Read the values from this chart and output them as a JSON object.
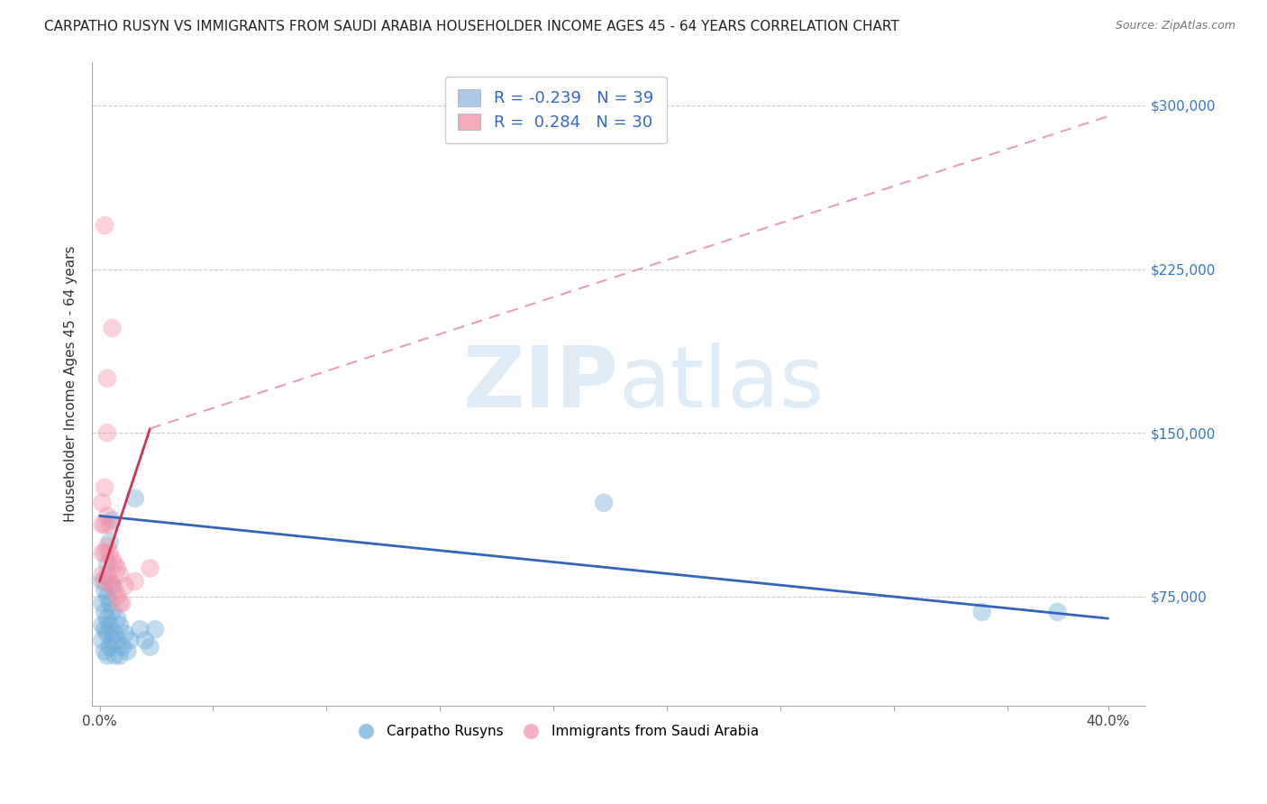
{
  "title": "CARPATHO RUSYN VS IMMIGRANTS FROM SAUDI ARABIA HOUSEHOLDER INCOME AGES 45 - 64 YEARS CORRELATION CHART",
  "source": "Source: ZipAtlas.com",
  "ylabel": "Householder Income Ages 45 - 64 years",
  "xlabel_ticks": [
    "0.0%",
    "",
    "",
    "",
    "",
    "",
    "",
    "",
    "",
    "40.0%"
  ],
  "xlabel_vals": [
    0.0,
    0.045,
    0.09,
    0.135,
    0.18,
    0.225,
    0.27,
    0.315,
    0.36,
    0.4
  ],
  "ytick_labels": [
    "$75,000",
    "$150,000",
    "$225,000",
    "$300,000"
  ],
  "ytick_vals": [
    75000,
    150000,
    225000,
    300000
  ],
  "ylim": [
    25000,
    320000
  ],
  "xlim": [
    -0.003,
    0.415
  ],
  "legend_entries": [
    {
      "label": "R = -0.239   N = 39",
      "color": "#aac8e8"
    },
    {
      "label": "R =  0.284   N = 30",
      "color": "#f4aabb"
    }
  ],
  "legend_bottom": [
    "Carpatho Rusyns",
    "Immigrants from Saudi Arabia"
  ],
  "blue_scatter": [
    [
      0.001,
      55000
    ],
    [
      0.001,
      62000
    ],
    [
      0.001,
      72000
    ],
    [
      0.001,
      82000
    ],
    [
      0.002,
      50000
    ],
    [
      0.002,
      60000
    ],
    [
      0.002,
      68000
    ],
    [
      0.002,
      78000
    ],
    [
      0.003,
      48000
    ],
    [
      0.003,
      58000
    ],
    [
      0.003,
      65000
    ],
    [
      0.003,
      75000
    ],
    [
      0.003,
      90000
    ],
    [
      0.004,
      52000
    ],
    [
      0.004,
      62000
    ],
    [
      0.004,
      72000
    ],
    [
      0.004,
      100000
    ],
    [
      0.005,
      55000
    ],
    [
      0.005,
      68000
    ],
    [
      0.005,
      80000
    ],
    [
      0.005,
      110000
    ],
    [
      0.006,
      48000
    ],
    [
      0.006,
      58000
    ],
    [
      0.007,
      55000
    ],
    [
      0.007,
      65000
    ],
    [
      0.008,
      48000
    ],
    [
      0.008,
      62000
    ],
    [
      0.009,
      52000
    ],
    [
      0.01,
      58000
    ],
    [
      0.011,
      50000
    ],
    [
      0.012,
      55000
    ],
    [
      0.014,
      120000
    ],
    [
      0.016,
      60000
    ],
    [
      0.018,
      55000
    ],
    [
      0.02,
      52000
    ],
    [
      0.022,
      60000
    ],
    [
      0.2,
      118000
    ],
    [
      0.35,
      68000
    ],
    [
      0.38,
      68000
    ]
  ],
  "pink_scatter": [
    [
      0.001,
      85000
    ],
    [
      0.001,
      95000
    ],
    [
      0.001,
      108000
    ],
    [
      0.001,
      118000
    ],
    [
      0.002,
      82000
    ],
    [
      0.002,
      95000
    ],
    [
      0.002,
      108000
    ],
    [
      0.002,
      125000
    ],
    [
      0.002,
      245000
    ],
    [
      0.003,
      85000
    ],
    [
      0.003,
      98000
    ],
    [
      0.003,
      112000
    ],
    [
      0.003,
      150000
    ],
    [
      0.003,
      175000
    ],
    [
      0.004,
      82000
    ],
    [
      0.004,
      95000
    ],
    [
      0.004,
      108000
    ],
    [
      0.005,
      80000
    ],
    [
      0.005,
      92000
    ],
    [
      0.005,
      198000
    ],
    [
      0.006,
      78000
    ],
    [
      0.006,
      90000
    ],
    [
      0.007,
      75000
    ],
    [
      0.007,
      88000
    ],
    [
      0.008,
      72000
    ],
    [
      0.008,
      85000
    ],
    [
      0.009,
      72000
    ],
    [
      0.01,
      80000
    ],
    [
      0.014,
      82000
    ],
    [
      0.02,
      88000
    ]
  ],
  "blue_line_solid": {
    "x": [
      0.0,
      0.4
    ],
    "y": [
      112000,
      65000
    ]
  },
  "pink_line_solid": {
    "x": [
      0.0,
      0.02
    ],
    "y": [
      82000,
      152000
    ]
  },
  "pink_line_dashed": {
    "x": [
      0.02,
      0.4
    ],
    "y": [
      152000,
      295000
    ]
  },
  "blue_color": "#6aaad8",
  "pink_color": "#f090a8",
  "blue_line_color": "#3366bb",
  "pink_line_color": "#cc3355",
  "pink_dashed_color": "#e8a0b0",
  "watermark_zip": "ZIP",
  "watermark_atlas": "atlas",
  "background_color": "#ffffff",
  "grid_color": "#cccccc"
}
